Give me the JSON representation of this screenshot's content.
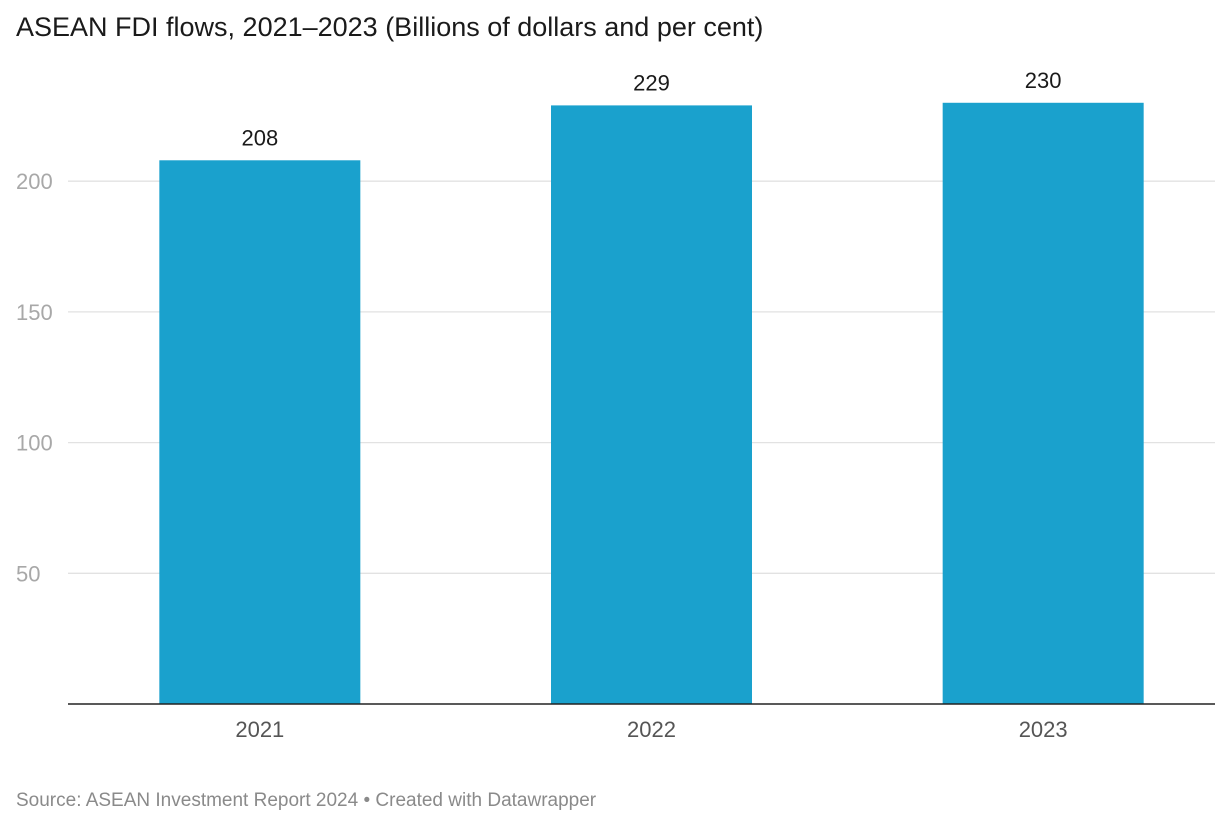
{
  "title": "ASEAN FDI flows, 2021–2023 (Billions of dollars and per cent)",
  "footer": {
    "source": "Source: ASEAN Investment Report 2024",
    "separator": "•",
    "credit": "Created with Datawrapper"
  },
  "colors": {
    "bar": "#1aa1cd"
  },
  "chart_data": {
    "type": "bar",
    "categories": [
      "2021",
      "2022",
      "2023"
    ],
    "values": [
      208,
      229,
      230
    ],
    "data_labels": [
      "208",
      "229",
      "230"
    ],
    "yticks": [
      50,
      100,
      150,
      200
    ],
    "ylim": [
      0,
      230
    ],
    "grid": true,
    "xlabel": "",
    "ylabel": ""
  }
}
